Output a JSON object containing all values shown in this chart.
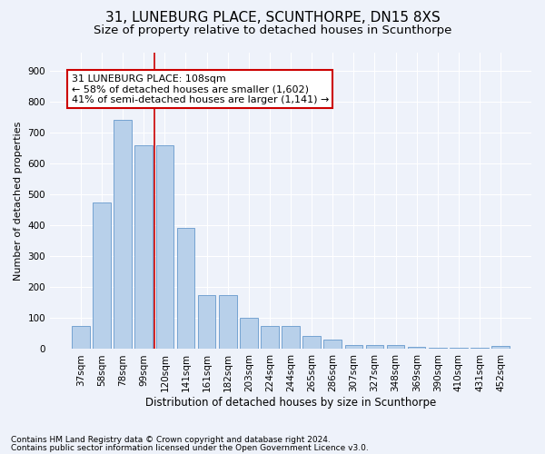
{
  "title": "31, LUNEBURG PLACE, SCUNTHORPE, DN15 8XS",
  "subtitle": "Size of property relative to detached houses in Scunthorpe",
  "xlabel": "Distribution of detached houses by size in Scunthorpe",
  "ylabel": "Number of detached properties",
  "categories": [
    "37sqm",
    "58sqm",
    "78sqm",
    "99sqm",
    "120sqm",
    "141sqm",
    "161sqm",
    "182sqm",
    "203sqm",
    "224sqm",
    "244sqm",
    "265sqm",
    "286sqm",
    "307sqm",
    "327sqm",
    "348sqm",
    "369sqm",
    "390sqm",
    "410sqm",
    "431sqm",
    "452sqm"
  ],
  "bar_values": [
    75,
    475,
    740,
    660,
    660,
    393,
    175,
    175,
    100,
    75,
    75,
    42,
    30,
    14,
    14,
    12,
    8,
    5,
    5,
    5,
    10
  ],
  "bar_color": "#b8d0ea",
  "bar_edge_color": "#6699cc",
  "vline_x": 3.5,
  "vline_color": "#cc0000",
  "annotation_text": "31 LUNEBURG PLACE: 108sqm\n← 58% of detached houses are smaller (1,602)\n41% of semi-detached houses are larger (1,141) →",
  "annotation_box_facecolor": "#ffffff",
  "annotation_box_edgecolor": "#cc0000",
  "ylim": [
    0,
    960
  ],
  "yticks": [
    0,
    100,
    200,
    300,
    400,
    500,
    600,
    700,
    800,
    900
  ],
  "footnote1": "Contains HM Land Registry data © Crown copyright and database right 2024.",
  "footnote2": "Contains public sector information licensed under the Open Government Licence v3.0.",
  "background_color": "#eef2fa",
  "grid_color": "#ffffff",
  "title_fontsize": 11,
  "subtitle_fontsize": 9.5,
  "ylabel_fontsize": 8,
  "xlabel_fontsize": 8.5,
  "tick_fontsize": 7.5,
  "annotation_fontsize": 8,
  "footnote_fontsize": 6.5
}
